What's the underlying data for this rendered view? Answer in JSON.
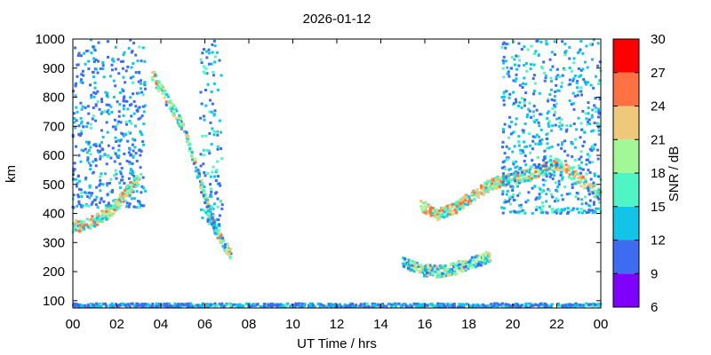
{
  "chart_data": {
    "type": "heatmap",
    "title": "2026-01-12",
    "xlabel": "UT Time / hrs",
    "ylabel": "km",
    "xlim": [
      0,
      24
    ],
    "ylim": [
      75,
      1000
    ],
    "x_ticks": [
      "00",
      "02",
      "04",
      "06",
      "08",
      "10",
      "12",
      "14",
      "16",
      "18",
      "20",
      "22",
      "00"
    ],
    "y_ticks": [
      100,
      200,
      300,
      400,
      500,
      600,
      700,
      800,
      900,
      1000
    ],
    "colorbar": {
      "label": "SNR / dB",
      "range": [
        6,
        30
      ],
      "ticks": [
        6,
        9,
        12,
        15,
        18,
        21,
        24,
        27,
        30
      ],
      "bands": [
        {
          "from": 6,
          "to": 9,
          "color": "#7f00ff"
        },
        {
          "from": 9,
          "to": 12,
          "color": "#3d6cf2"
        },
        {
          "from": 12,
          "to": 15,
          "color": "#12c4e8"
        },
        {
          "from": 15,
          "to": 18,
          "color": "#4ff5c5"
        },
        {
          "from": 18,
          "to": 21,
          "color": "#a2f797"
        },
        {
          "from": 21,
          "to": 24,
          "color": "#eec97a"
        },
        {
          "from": 24,
          "to": 27,
          "color": "#ff7043"
        },
        {
          "from": 27,
          "to": 30,
          "color": "#ff0000"
        }
      ]
    },
    "grid": false,
    "echo_regions": [
      {
        "name": "early-morning-cloud",
        "x_range": [
          0.0,
          3.3
        ],
        "y_range": [
          420,
          1000
        ],
        "snr_typical": 10
      },
      {
        "name": "morning-rising-trace",
        "trace": [
          [
            0.0,
            355
          ],
          [
            0.5,
            360
          ],
          [
            1.0,
            375
          ],
          [
            1.6,
            400
          ],
          [
            2.0,
            430
          ],
          [
            2.4,
            470
          ],
          [
            3.0,
            520
          ]
        ],
        "snr_typical": 20
      },
      {
        "name": "morning-descending-trace",
        "trace": [
          [
            3.6,
            880
          ],
          [
            4.2,
            800
          ],
          [
            5.0,
            700
          ],
          [
            5.6,
            560
          ],
          [
            6.0,
            460
          ],
          [
            6.4,
            360
          ],
          [
            6.8,
            300
          ],
          [
            7.2,
            260
          ]
        ],
        "snr_typical": 18
      },
      {
        "name": "morning-column",
        "x_range": [
          5.8,
          6.8
        ],
        "y_range": [
          350,
          1000
        ],
        "snr_typical": 11
      },
      {
        "name": "low-altitude-band",
        "x_range": [
          0.0,
          24.0
        ],
        "y_range": [
          78,
          90
        ],
        "snr_typical": 10
      },
      {
        "name": "late-afternoon-lower-trace",
        "trace": [
          [
            15.0,
            230
          ],
          [
            15.8,
            205
          ],
          [
            16.6,
            200
          ],
          [
            17.4,
            210
          ],
          [
            18.2,
            230
          ],
          [
            19.0,
            255
          ]
        ],
        "snr_typical": 17
      },
      {
        "name": "late-afternoon-upper-trace",
        "trace": [
          [
            15.8,
            430
          ],
          [
            16.6,
            395
          ],
          [
            17.4,
            420
          ],
          [
            18.2,
            460
          ],
          [
            19.0,
            500
          ],
          [
            20.0,
            520
          ],
          [
            21.0,
            540
          ],
          [
            22.0,
            570
          ],
          [
            23.0,
            520
          ],
          [
            24.0,
            460
          ]
        ],
        "snr_typical": 20
      },
      {
        "name": "evening-cloud",
        "x_range": [
          19.5,
          24.0
        ],
        "y_range": [
          400,
          1000
        ],
        "snr_typical": 11
      }
    ]
  }
}
